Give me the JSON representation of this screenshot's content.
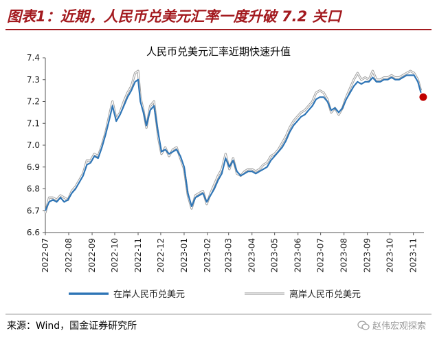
{
  "figure": {
    "title": "图表1：近期，人民币兑美元汇率一度升破 7.2 关口"
  },
  "source": "来源：Wind，国金证券研究所",
  "watermark": {
    "text": "赵伟宏观探索",
    "icon": "wechat-icon"
  },
  "colors": {
    "title_red": "#a31a1f",
    "onshore": "#2e75b6",
    "offshore": "#a0a0a0",
    "marker": "#c00000"
  },
  "chart_data": {
    "type": "line",
    "title": "人民币兑美元汇率近期快速升值",
    "xlabel": "",
    "ylabel": "",
    "xlim": [
      "2022-07-01",
      "2023-11-15"
    ],
    "ylim": [
      6.6,
      7.4
    ],
    "yticks": [
      6.6,
      6.7,
      6.8,
      6.9,
      7.0,
      7.1,
      7.2,
      7.3,
      7.4
    ],
    "ytick_labels": [
      "6.6",
      "6.7",
      "6.8",
      "6.9",
      "7.0",
      "7.1",
      "7.2",
      "7.3",
      "7.4"
    ],
    "xtick_labels": [
      "2022-07",
      "2022-08",
      "2022-09",
      "2022-10",
      "2022-11",
      "2022-12",
      "2023-01",
      "2023-02",
      "2023-03",
      "2023-04",
      "2023-05",
      "2023-06",
      "2023-07",
      "2023-08",
      "2023-09",
      "2023-10",
      "2023-11"
    ],
    "legend_position": "bottom",
    "grid": false,
    "series": [
      {
        "name": "在岸人民币兑美元",
        "x": [
          "2022-07-01",
          "2022-07-06",
          "2022-07-11",
          "2022-07-16",
          "2022-07-21",
          "2022-07-26",
          "2022-07-31",
          "2022-08-05",
          "2022-08-10",
          "2022-08-15",
          "2022-08-20",
          "2022-08-25",
          "2022-08-30",
          "2022-09-04",
          "2022-09-09",
          "2022-09-14",
          "2022-09-19",
          "2022-09-24",
          "2022-09-28",
          "2022-10-03",
          "2022-10-08",
          "2022-10-13",
          "2022-10-18",
          "2022-10-23",
          "2022-10-28",
          "2022-11-01",
          "2022-11-04",
          "2022-11-08",
          "2022-11-12",
          "2022-11-17",
          "2022-11-22",
          "2022-11-28",
          "2022-12-02",
          "2022-12-07",
          "2022-12-12",
          "2022-12-17",
          "2022-12-22",
          "2022-12-27",
          "2023-01-01",
          "2023-01-06",
          "2023-01-11",
          "2023-01-16",
          "2023-01-21",
          "2023-01-26",
          "2023-01-31",
          "2023-02-05",
          "2023-02-10",
          "2023-02-15",
          "2023-02-20",
          "2023-02-25",
          "2023-03-02",
          "2023-03-07",
          "2023-03-12",
          "2023-03-17",
          "2023-03-22",
          "2023-03-27",
          "2023-04-01",
          "2023-04-06",
          "2023-04-11",
          "2023-04-16",
          "2023-04-21",
          "2023-04-26",
          "2023-05-01",
          "2023-05-06",
          "2023-05-11",
          "2023-05-16",
          "2023-05-21",
          "2023-05-26",
          "2023-05-31",
          "2023-06-05",
          "2023-06-10",
          "2023-06-15",
          "2023-06-20",
          "2023-06-25",
          "2023-06-30",
          "2023-07-05",
          "2023-07-10",
          "2023-07-15",
          "2023-07-20",
          "2023-07-25",
          "2023-07-30",
          "2023-08-04",
          "2023-08-09",
          "2023-08-14",
          "2023-08-19",
          "2023-08-24",
          "2023-08-29",
          "2023-09-03",
          "2023-09-08",
          "2023-09-13",
          "2023-09-18",
          "2023-09-23",
          "2023-09-28",
          "2023-10-03",
          "2023-10-08",
          "2023-10-13",
          "2023-10-18",
          "2023-10-23",
          "2023-10-28",
          "2023-11-02",
          "2023-11-07",
          "2023-11-11"
        ],
        "y": [
          6.7,
          6.74,
          6.75,
          6.74,
          6.76,
          6.74,
          6.75,
          6.78,
          6.8,
          6.83,
          6.86,
          6.91,
          6.92,
          6.95,
          6.94,
          6.99,
          7.05,
          7.12,
          7.18,
          7.11,
          7.14,
          7.18,
          7.22,
          7.25,
          7.29,
          7.3,
          7.2,
          7.15,
          7.09,
          7.16,
          7.18,
          7.05,
          6.97,
          6.98,
          6.96,
          6.97,
          6.98,
          6.95,
          6.9,
          6.78,
          6.72,
          6.76,
          6.77,
          6.78,
          6.74,
          6.77,
          6.8,
          6.84,
          6.87,
          6.94,
          6.9,
          6.93,
          6.88,
          6.86,
          6.87,
          6.88,
          6.88,
          6.87,
          6.88,
          6.89,
          6.9,
          6.93,
          6.95,
          6.97,
          6.99,
          7.02,
          7.06,
          7.09,
          7.11,
          7.13,
          7.14,
          7.16,
          7.18,
          7.21,
          7.22,
          7.22,
          7.2,
          7.16,
          7.17,
          7.15,
          7.17,
          7.21,
          7.24,
          7.27,
          7.29,
          7.28,
          7.29,
          7.29,
          7.31,
          7.29,
          7.29,
          7.3,
          7.3,
          7.31,
          7.3,
          7.3,
          7.31,
          7.32,
          7.32,
          7.32,
          7.29,
          7.24
        ]
      },
      {
        "name": "离岸人民币兑美元",
        "x": [
          "2022-07-01",
          "2022-07-06",
          "2022-07-11",
          "2022-07-16",
          "2022-07-21",
          "2022-07-26",
          "2022-07-31",
          "2022-08-05",
          "2022-08-10",
          "2022-08-15",
          "2022-08-20",
          "2022-08-25",
          "2022-08-30",
          "2022-09-04",
          "2022-09-09",
          "2022-09-14",
          "2022-09-19",
          "2022-09-24",
          "2022-09-28",
          "2022-10-03",
          "2022-10-08",
          "2022-10-13",
          "2022-10-18",
          "2022-10-23",
          "2022-10-28",
          "2022-11-01",
          "2022-11-04",
          "2022-11-08",
          "2022-11-12",
          "2022-11-17",
          "2022-11-22",
          "2022-11-28",
          "2022-12-02",
          "2022-12-07",
          "2022-12-12",
          "2022-12-17",
          "2022-12-22",
          "2022-12-27",
          "2023-01-01",
          "2023-01-06",
          "2023-01-11",
          "2023-01-16",
          "2023-01-21",
          "2023-01-26",
          "2023-01-31",
          "2023-02-05",
          "2023-02-10",
          "2023-02-15",
          "2023-02-20",
          "2023-02-25",
          "2023-03-02",
          "2023-03-07",
          "2023-03-12",
          "2023-03-17",
          "2023-03-22",
          "2023-03-27",
          "2023-04-01",
          "2023-04-06",
          "2023-04-11",
          "2023-04-16",
          "2023-04-21",
          "2023-04-26",
          "2023-05-01",
          "2023-05-06",
          "2023-05-11",
          "2023-05-16",
          "2023-05-21",
          "2023-05-26",
          "2023-05-31",
          "2023-06-05",
          "2023-06-10",
          "2023-06-15",
          "2023-06-20",
          "2023-06-25",
          "2023-06-30",
          "2023-07-05",
          "2023-07-10",
          "2023-07-15",
          "2023-07-20",
          "2023-07-25",
          "2023-07-30",
          "2023-08-04",
          "2023-08-09",
          "2023-08-14",
          "2023-08-19",
          "2023-08-24",
          "2023-08-29",
          "2023-09-03",
          "2023-09-08",
          "2023-09-13",
          "2023-09-18",
          "2023-09-23",
          "2023-09-28",
          "2023-10-03",
          "2023-10-08",
          "2023-10-13",
          "2023-10-18",
          "2023-10-23",
          "2023-10-28",
          "2023-11-02",
          "2023-11-07",
          "2023-11-11"
        ],
        "y": [
          6.69,
          6.76,
          6.76,
          6.75,
          6.77,
          6.76,
          6.75,
          6.79,
          6.81,
          6.84,
          6.87,
          6.93,
          6.93,
          6.96,
          6.95,
          7.0,
          7.06,
          7.14,
          7.2,
          7.12,
          7.15,
          7.2,
          7.24,
          7.27,
          7.33,
          7.34,
          7.22,
          7.16,
          7.08,
          7.18,
          7.2,
          7.03,
          6.96,
          6.99,
          6.95,
          6.98,
          6.99,
          6.94,
          6.89,
          6.77,
          6.71,
          6.77,
          6.78,
          6.79,
          6.73,
          6.78,
          6.82,
          6.86,
          6.89,
          6.96,
          6.89,
          6.94,
          6.87,
          6.86,
          6.88,
          6.89,
          6.89,
          6.88,
          6.89,
          6.91,
          6.92,
          6.95,
          6.96,
          6.98,
          7.01,
          7.04,
          7.08,
          7.11,
          7.13,
          7.15,
          7.16,
          7.18,
          7.2,
          7.24,
          7.25,
          7.24,
          7.21,
          7.15,
          7.17,
          7.14,
          7.17,
          7.22,
          7.26,
          7.3,
          7.33,
          7.3,
          7.31,
          7.3,
          7.34,
          7.3,
          7.3,
          7.31,
          7.31,
          7.32,
          7.31,
          7.31,
          7.32,
          7.33,
          7.34,
          7.33,
          7.3,
          7.25
        ]
      }
    ],
    "marker": {
      "x": "2023-11-14",
      "y": 7.22
    }
  }
}
